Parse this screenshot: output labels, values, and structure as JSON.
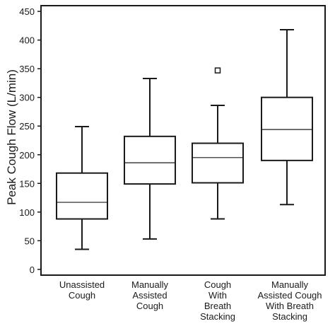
{
  "chart_data": {
    "type": "box",
    "title": "",
    "xlabel": "",
    "ylabel": "Peak Cough Flow (L/min)",
    "ylim": [
      -10,
      460
    ],
    "yticks": [
      0,
      50,
      100,
      150,
      200,
      250,
      300,
      350,
      400,
      450
    ],
    "grid": false,
    "categories": [
      {
        "lines": [
          "Unassisted",
          "Cough"
        ]
      },
      {
        "lines": [
          "Manually",
          "Assisted",
          "Cough"
        ]
      },
      {
        "lines": [
          "Cough",
          "With",
          "Breath",
          "Stacking"
        ]
      },
      {
        "lines": [
          "Manually",
          "Assisted Cough",
          "With Breath",
          "Stacking"
        ]
      }
    ],
    "boxes": [
      {
        "whisker_low": 35,
        "q1": 88,
        "median": 117,
        "q3": 168,
        "whisker_high": 249,
        "outliers": []
      },
      {
        "whisker_low": 53,
        "q1": 149,
        "median": 186,
        "q3": 232,
        "whisker_high": 333,
        "outliers": []
      },
      {
        "whisker_low": 88,
        "q1": 151,
        "median": 195,
        "q3": 220,
        "whisker_high": 286,
        "outliers": [
          347
        ]
      },
      {
        "whisker_low": 113,
        "q1": 190,
        "median": 244,
        "q3": 300,
        "whisker_high": 418,
        "outliers": []
      }
    ],
    "colors": {
      "stroke": "#1a1a1a",
      "fill": "#ffffff",
      "text": "#1a1a1a"
    }
  }
}
